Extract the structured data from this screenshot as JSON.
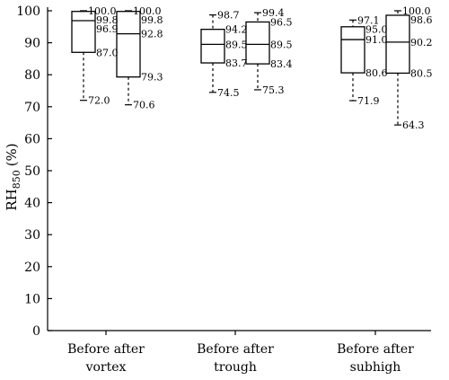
{
  "chart_data": {
    "type": "boxplot",
    "title": "",
    "xlabel": "",
    "ylabel_main": "RH",
    "ylabel_sub": "850",
    "ylabel_unit": "(%)",
    "ylim": [
      0,
      100
    ],
    "yticks": [
      0,
      10,
      20,
      30,
      40,
      50,
      60,
      70,
      80,
      90,
      100
    ],
    "groups": [
      {
        "label_line1": "Before after",
        "label_line2": "vortex",
        "boxes": [
          {
            "name": "Before",
            "min": 72.0,
            "q1": 87.0,
            "median": 96.9,
            "q3": 99.8,
            "max": 100.0,
            "labels": {
              "max": "100.0",
              "q3": "99.8",
              "median": "96.9",
              "q1": "87.0",
              "min": "72.0"
            }
          },
          {
            "name": "after",
            "min": 70.6,
            "q1": 79.3,
            "median": 92.8,
            "q3": 99.8,
            "max": 100.0,
            "labels": {
              "max": "100.0",
              "q3": "99.8",
              "median": "92.8",
              "q1": "79.3",
              "min": "70.6"
            }
          }
        ]
      },
      {
        "label_line1": "Before after",
        "label_line2": "trough",
        "boxes": [
          {
            "name": "Before",
            "min": 74.5,
            "q1": 83.7,
            "median": 89.5,
            "q3": 94.2,
            "max": 98.7,
            "labels": {
              "max": "98.7",
              "q3": "94.2",
              "median": "89.5",
              "q1": "83.7",
              "min": "74.5"
            }
          },
          {
            "name": "after",
            "min": 75.3,
            "q1": 83.4,
            "median": 89.5,
            "q3": 96.5,
            "max": 99.4,
            "labels": {
              "max": "99.4",
              "q3": "96.5",
              "median": "89.5",
              "q1": "83.4",
              "min": "75.3"
            }
          }
        ]
      },
      {
        "label_line1": "Before after",
        "label_line2": "subhigh",
        "boxes": [
          {
            "name": "Before",
            "min": 71.9,
            "q1": 80.6,
            "median": 91.0,
            "q3": 95.0,
            "max": 97.1,
            "labels": {
              "max": "97.1",
              "q3": "95.0",
              "median": "91.0",
              "q1": "80.6",
              "min": "71.9"
            }
          },
          {
            "name": "after",
            "min": 64.3,
            "q1": 80.5,
            "median": 90.2,
            "q3": 98.6,
            "max": 100.0,
            "labels": {
              "max": "100.0",
              "q3": "98.6",
              "median": "90.2",
              "q1": "80.5",
              "min": "64.3"
            }
          }
        ]
      }
    ]
  }
}
